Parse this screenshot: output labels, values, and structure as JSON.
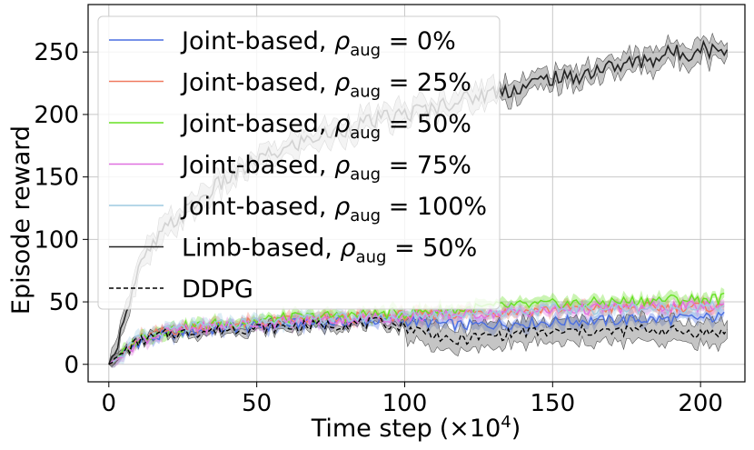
{
  "chart_data": {
    "type": "line",
    "title": "",
    "xlabel": "Time step",
    "xlabel_unit_prefix": "(×10",
    "xlabel_unit_exp": "4",
    "xlabel_unit_suffix": ")",
    "ylabel": "Episode reward",
    "xlim": [
      -7,
      215
    ],
    "ylim": [
      -14,
      288
    ],
    "xticks": [
      0,
      50,
      100,
      150,
      200
    ],
    "yticks": [
      0,
      50,
      100,
      150,
      200,
      250
    ],
    "xtick_labels": [
      "0",
      "50",
      "100",
      "150",
      "200"
    ],
    "ytick_labels": [
      "0",
      "50",
      "100",
      "150",
      "200",
      "250"
    ],
    "grid": true,
    "legend_position": "upper-left",
    "series": [
      {
        "name": "Joint-based, ρaug = 0%",
        "label_prefix": "Joint-based, ",
        "rho_value": "0%",
        "color": "#4a6ee0",
        "dash": "solid",
        "x": [
          0,
          5,
          10,
          20,
          30,
          40,
          50,
          60,
          70,
          80,
          90,
          100,
          110,
          120,
          130,
          140,
          150,
          160,
          170,
          180,
          190,
          200,
          208
        ],
        "y": [
          0,
          8,
          18,
          24,
          27,
          29,
          30,
          32,
          33,
          34,
          35,
          35,
          33,
          31,
          32,
          33,
          34,
          35,
          35,
          36,
          36,
          37,
          38
        ]
      },
      {
        "name": "Joint-based, ρaug = 25%",
        "label_prefix": "Joint-based, ",
        "rho_value": "25%",
        "color": "#f07a60",
        "dash": "solid",
        "x": [
          0,
          5,
          10,
          20,
          30,
          40,
          50,
          60,
          70,
          80,
          90,
          100,
          110,
          120,
          130,
          140,
          150,
          160,
          170,
          180,
          190,
          200,
          208
        ],
        "y": [
          0,
          9,
          20,
          27,
          30,
          32,
          33,
          35,
          36,
          37,
          38,
          39,
          40,
          41,
          42,
          43,
          44,
          45,
          45,
          45,
          46,
          46,
          46
        ]
      },
      {
        "name": "Joint-based, ρaug = 50%",
        "label_prefix": "Joint-based, ",
        "rho_value": "50%",
        "color": "#66e022",
        "dash": "solid",
        "x": [
          0,
          5,
          10,
          20,
          30,
          40,
          50,
          60,
          70,
          80,
          90,
          100,
          110,
          120,
          130,
          140,
          150,
          160,
          170,
          180,
          190,
          200,
          208
        ],
        "y": [
          0,
          9,
          21,
          28,
          31,
          33,
          35,
          37,
          38,
          39,
          40,
          41,
          43,
          44,
          46,
          47,
          48,
          49,
          50,
          51,
          52,
          52,
          53
        ]
      },
      {
        "name": "Joint-based, ρaug = 75%",
        "label_prefix": "Joint-based, ",
        "rho_value": "75%",
        "color": "#e070e0",
        "dash": "solid",
        "x": [
          0,
          5,
          10,
          20,
          30,
          40,
          50,
          60,
          70,
          80,
          90,
          100,
          110,
          120,
          130,
          140,
          150,
          160,
          170,
          180,
          190,
          200,
          208
        ],
        "y": [
          0,
          8,
          19,
          26,
          29,
          31,
          33,
          34,
          35,
          36,
          37,
          38,
          39,
          40,
          41,
          42,
          43,
          44,
          45,
          45,
          46,
          46,
          47
        ]
      },
      {
        "name": "Joint-based, ρaug = 100%",
        "label_prefix": "Joint-based, ",
        "rho_value": "100%",
        "color": "#9ecae1",
        "dash": "solid",
        "x": [
          0,
          5,
          10,
          20,
          30,
          40,
          50,
          60,
          70,
          80,
          90,
          100,
          110,
          120,
          130,
          140,
          150,
          160,
          170,
          180,
          190,
          200,
          208
        ],
        "y": [
          0,
          9,
          20,
          27,
          30,
          32,
          34,
          35,
          36,
          37,
          38,
          39,
          40,
          41,
          42,
          43,
          44,
          44,
          45,
          45,
          45,
          46,
          46
        ]
      },
      {
        "name": "Limb-based, ρaug = 50%",
        "label_prefix": "Limb-based, ",
        "rho_value": "50%",
        "color": "#222222",
        "dash": "solid",
        "band": true,
        "x": [
          0,
          3,
          5,
          8,
          10,
          15,
          20,
          25,
          30,
          35,
          40,
          45,
          50,
          55,
          60,
          65,
          70,
          75,
          80,
          85,
          90,
          95,
          100,
          105,
          110,
          115,
          120,
          125,
          130,
          135,
          140,
          145,
          150,
          155,
          160,
          165,
          170,
          175,
          180,
          185,
          190,
          195,
          200,
          205,
          209
        ],
        "y": [
          0,
          15,
          40,
          58,
          75,
          95,
          110,
          120,
          130,
          140,
          148,
          155,
          163,
          168,
          172,
          178,
          182,
          185,
          188,
          192,
          195,
          198,
          200,
          203,
          205,
          210,
          212,
          215,
          218,
          220,
          222,
          226,
          230,
          228,
          232,
          236,
          238,
          240,
          243,
          245,
          250,
          248,
          255,
          250,
          255
        ]
      },
      {
        "name": "DDPG",
        "label_prefix": "DDPG",
        "rho_value": "",
        "color": "#000000",
        "dash": "dashed",
        "band": true,
        "x": [
          0,
          5,
          10,
          15,
          20,
          30,
          40,
          50,
          60,
          70,
          80,
          90,
          95,
          100,
          105,
          110,
          115,
          120,
          125,
          130,
          135,
          140,
          150,
          160,
          170,
          180,
          190,
          200,
          209
        ],
        "y": [
          0,
          10,
          18,
          22,
          24,
          26,
          28,
          29,
          30,
          31,
          32,
          33,
          32,
          30,
          27,
          25,
          17,
          20,
          22,
          23,
          24,
          26,
          25,
          27,
          26,
          28,
          27,
          25,
          26
        ]
      }
    ]
  }
}
